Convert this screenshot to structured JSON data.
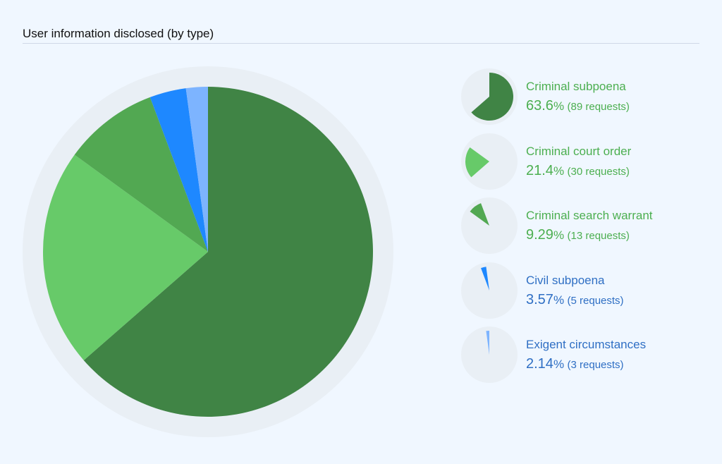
{
  "chart_data": {
    "type": "pie",
    "title": "User information disclosed (by type)",
    "slices": [
      {
        "label": "Criminal subpoena",
        "percent": "63.6",
        "requests": "(89 requests)",
        "value": 89,
        "color": "#408445",
        "text_color": "#4caf50"
      },
      {
        "label": "Criminal court order",
        "percent": "21.4",
        "requests": "(30 requests)",
        "value": 30,
        "color": "#67ca69",
        "text_color": "#4caf50"
      },
      {
        "label": "Criminal search warrant",
        "percent": "9.29",
        "requests": "(13 requests)",
        "value": 13,
        "color": "#52a852",
        "text_color": "#4caf50"
      },
      {
        "label": "Civil subpoena",
        "percent": "3.57",
        "requests": "(5 requests)",
        "value": 5,
        "color": "#1e88ff",
        "text_color": "#2f6fc4"
      },
      {
        "label": "Exigent circumstances",
        "percent": "2.14",
        "requests": "(3 requests)",
        "value": 3,
        "color": "#7db4ff",
        "text_color": "#2f6fc4"
      }
    ],
    "percent_sign": "%",
    "background_ring_color": "#e9eff5"
  }
}
